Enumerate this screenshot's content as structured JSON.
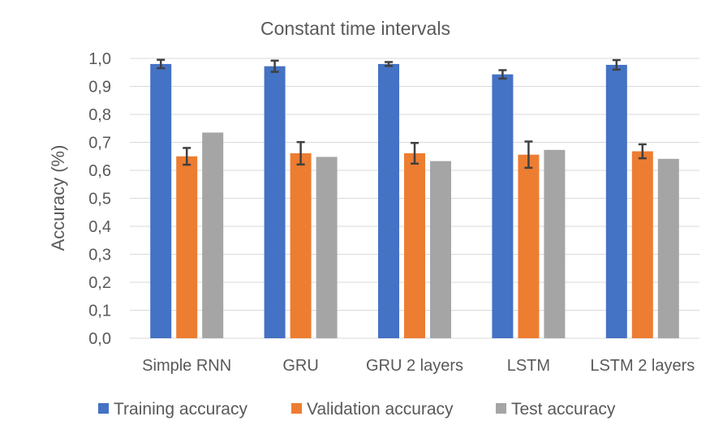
{
  "chart_data": {
    "type": "bar",
    "title": "Constant time intervals",
    "xlabel": "",
    "ylabel": "Accuracy (%)",
    "ylim": [
      0,
      1.0
    ],
    "yticks": [
      "0,0",
      "0,1",
      "0,2",
      "0,3",
      "0,4",
      "0,5",
      "0,6",
      "0,7",
      "0,8",
      "0,9",
      "1,0"
    ],
    "grid": true,
    "legend_position": "bottom",
    "categories": [
      "Simple RNN",
      "GRU",
      "GRU 2 layers",
      "LSTM",
      "LSTM 2 layers"
    ],
    "series": [
      {
        "name": "Training accuracy",
        "color": "#4472c4",
        "values": [
          0.98,
          0.972,
          0.98,
          0.943,
          0.977
        ],
        "errors": [
          0.015,
          0.02,
          0.007,
          0.015,
          0.017
        ]
      },
      {
        "name": "Validation accuracy",
        "color": "#ed7d31",
        "values": [
          0.65,
          0.661,
          0.661,
          0.656,
          0.668
        ],
        "errors": [
          0.03,
          0.04,
          0.037,
          0.047,
          0.025
        ]
      },
      {
        "name": "Test accuracy",
        "color": "#a5a5a5",
        "values": [
          0.735,
          0.648,
          0.633,
          0.673,
          0.641
        ],
        "errors": null
      }
    ]
  }
}
